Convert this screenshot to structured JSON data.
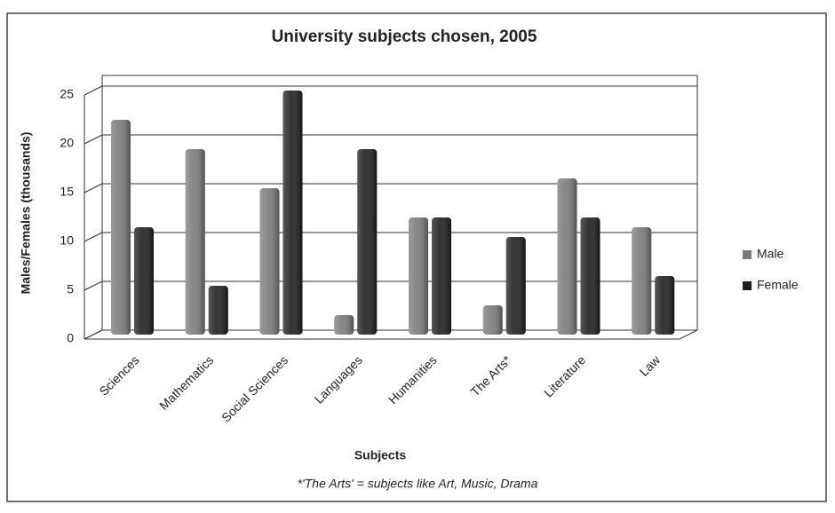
{
  "chart_data": {
    "type": "bar",
    "title": "University subjects chosen, 2005",
    "x_label": "Subjects",
    "y_label": "Males/Females (thousands)",
    "note": "*'The Arts' = subjects like Art, Music, Drama",
    "categories": [
      "Sciences",
      "Mathematics",
      "Social Sciences",
      "Languages",
      "Humanities",
      "The Arts*",
      "Literature",
      "Law"
    ],
    "series": [
      {
        "name": "Male",
        "color": "#7a7a7a",
        "values": [
          22,
          19,
          15,
          2,
          12,
          3,
          16,
          11
        ]
      },
      {
        "name": "Female",
        "color": "#1e1e1e",
        "values": [
          11,
          5,
          25,
          19,
          12,
          10,
          12,
          6
        ]
      }
    ],
    "ylim": [
      0,
      25
    ],
    "yticks": [
      0,
      5,
      10,
      15,
      20,
      25
    ],
    "grid": true,
    "legend": "right"
  }
}
